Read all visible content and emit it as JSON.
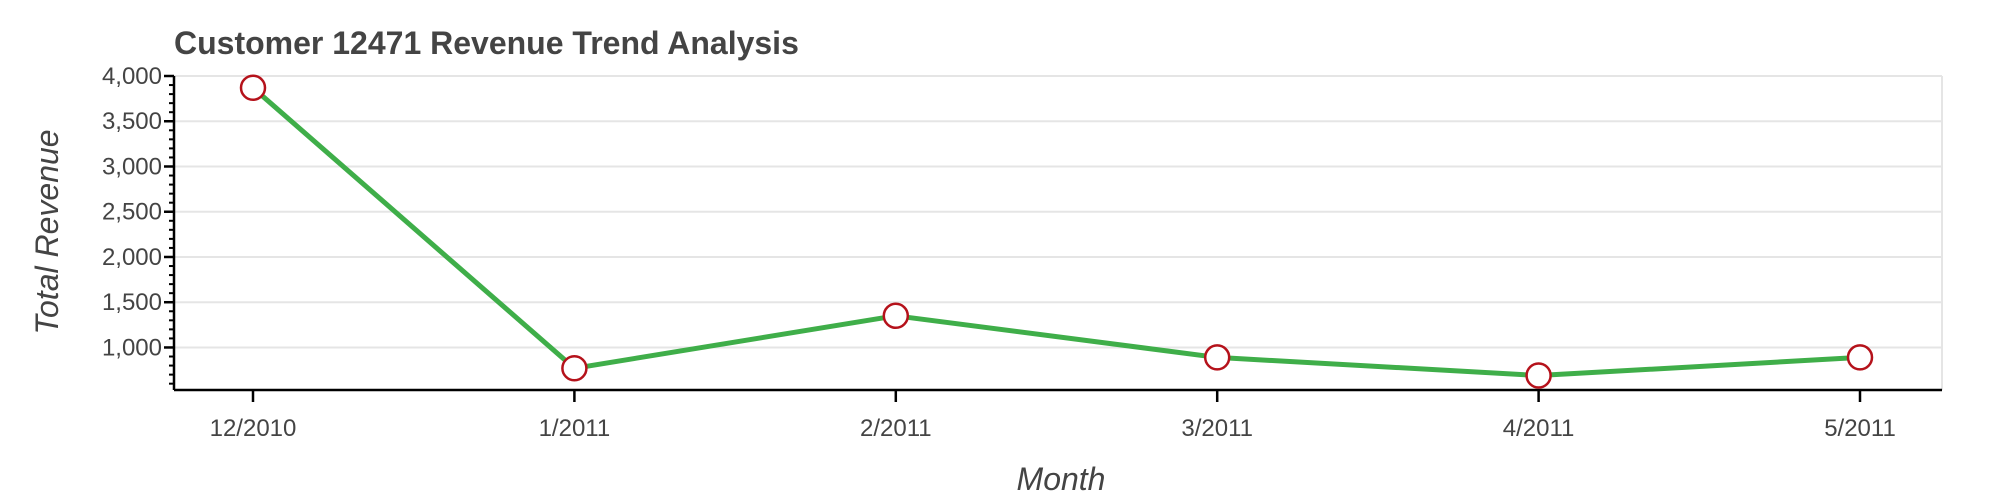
{
  "chart_data": {
    "type": "line",
    "title": "Customer 12471 Revenue Trend Analysis",
    "xlabel": "Month",
    "ylabel": "Total Revenue",
    "categories": [
      "12/2010",
      "1/2011",
      "2/2011",
      "3/2011",
      "4/2011",
      "5/2011"
    ],
    "series": [
      {
        "values": [
          3870,
          770,
          1350,
          890,
          690,
          890
        ]
      }
    ],
    "ylim": [
      530,
      4000
    ],
    "yticks": [
      1000,
      1500,
      2000,
      2500,
      3000,
      3500,
      4000
    ],
    "ytick_labels": [
      "1,000",
      "1,500",
      "2,000",
      "2,500",
      "3,000",
      "3,500",
      "4,000"
    ],
    "grid": true,
    "colors": {
      "line": "#3fae49",
      "marker_stroke": "#b5121b",
      "marker_fill": "#ffffff"
    }
  }
}
